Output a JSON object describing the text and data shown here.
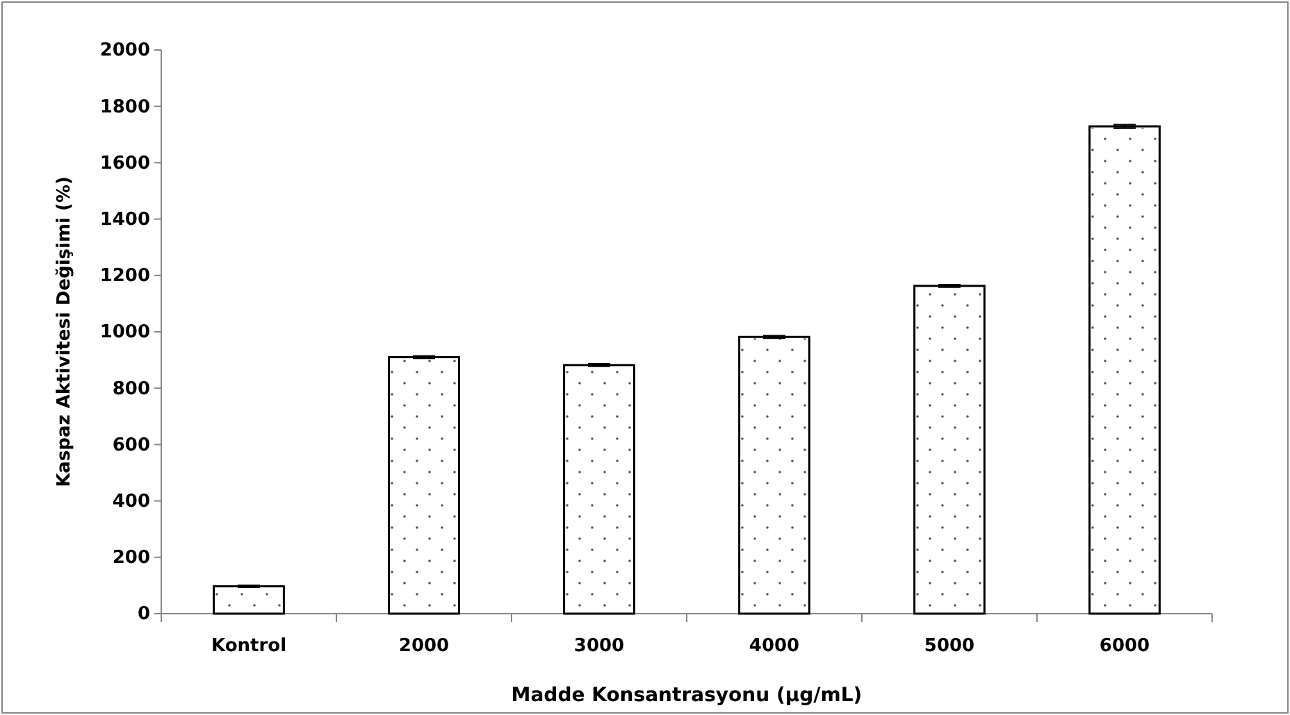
{
  "chart_data": {
    "type": "bar",
    "xlabel": "Madde Konsantrasyonu (µg/mL)",
    "ylabel": "Kaspaz Aktivitesi Değişimi (%)",
    "categories": [
      "Kontrol",
      "2000",
      "3000",
      "4000",
      "5000",
      "6000"
    ],
    "values": [
      97,
      910,
      882,
      982,
      1163,
      1729
    ],
    "errors": [
      3,
      4,
      4,
      4,
      4,
      6
    ],
    "color": "#ffffff",
    "ylim": [
      0,
      2000
    ],
    "yticks": [
      0,
      200,
      400,
      600,
      800,
      1000,
      1200,
      1400,
      1600,
      1800,
      2000
    ],
    "grid": false
  }
}
